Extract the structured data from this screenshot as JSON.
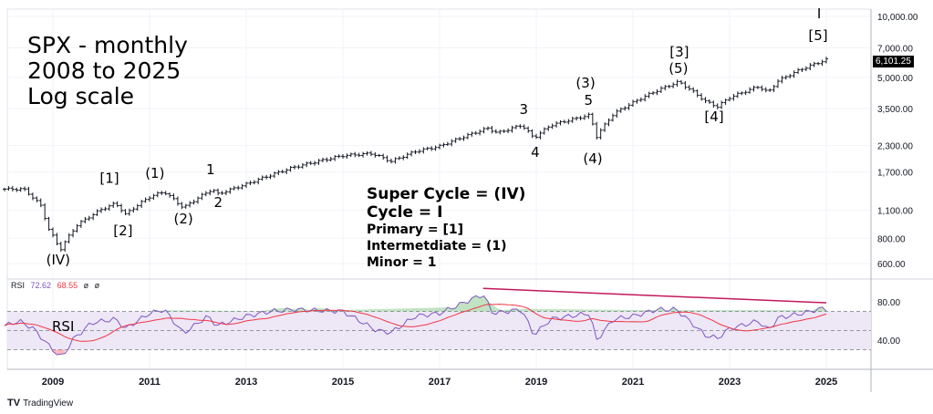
{
  "chart_data": {
    "type": "ohlc",
    "title_lines": [
      "SPX - monthly",
      "2008 to 2025",
      "Log scale"
    ],
    "yscale": "log",
    "ylim": [
      540,
      10500
    ],
    "y_ticks": [
      "10,000.00",
      "7,000.00",
      "5,000.00",
      "3,500.00",
      "2,300.00",
      "1,700.00",
      "1,100.00",
      "800.00",
      "600.00"
    ],
    "y_tick_values": [
      10000,
      7000,
      5000,
      3500,
      2300,
      1700,
      1100,
      800,
      600
    ],
    "x_ticks": [
      "2009",
      "2011",
      "2013",
      "2015",
      "2017",
      "2019",
      "2021",
      "2023",
      "2025"
    ],
    "x_tick_values": [
      2009,
      2011,
      2013,
      2015,
      2017,
      2019,
      2021,
      2023,
      2025
    ],
    "xlim": [
      2008.0,
      2026.3
    ],
    "last_price": "6,101.25",
    "price_keypoints": [
      [
        2008.0,
        1400
      ],
      [
        2008.4,
        1400
      ],
      [
        2008.75,
        1160
      ],
      [
        2008.9,
        900
      ],
      [
        2009.15,
        700
      ],
      [
        2009.5,
        930
      ],
      [
        2010.0,
        1110
      ],
      [
        2010.3,
        1190
      ],
      [
        2010.5,
        1050
      ],
      [
        2011.0,
        1280
      ],
      [
        2011.3,
        1360
      ],
      [
        2011.7,
        1130
      ],
      [
        2012.3,
        1400
      ],
      [
        2012.4,
        1320
      ],
      [
        2013.0,
        1480
      ],
      [
        2014.0,
        1800
      ],
      [
        2015.0,
        2050
      ],
      [
        2015.6,
        2100
      ],
      [
        2016.0,
        1920
      ],
      [
        2016.5,
        2150
      ],
      [
        2017.0,
        2280
      ],
      [
        2018.0,
        2800
      ],
      [
        2018.2,
        2650
      ],
      [
        2018.7,
        2900
      ],
      [
        2018.95,
        2500
      ],
      [
        2019.3,
        2900
      ],
      [
        2020.1,
        3250
      ],
      [
        2020.25,
        2550
      ],
      [
        2020.6,
        3300
      ],
      [
        2021.0,
        3750
      ],
      [
        2021.5,
        4300
      ],
      [
        2021.95,
        4750
      ],
      [
        2022.5,
        3800
      ],
      [
        2022.75,
        3580
      ],
      [
        2023.0,
        3970
      ],
      [
        2023.6,
        4500
      ],
      [
        2023.8,
        4200
      ],
      [
        2024.0,
        4800
      ],
      [
        2024.5,
        5500
      ],
      [
        2025.0,
        6100
      ]
    ],
    "wave_labels": [
      {
        "text": "(IV)",
        "x": 2009.11,
        "y": 594
      },
      {
        "text": "[1]",
        "x": 2010.17,
        "y": 1500
      },
      {
        "text": "[2]",
        "x": 2010.45,
        "y": 828
      },
      {
        "text": "(1)",
        "x": 2011.11,
        "y": 1592
      },
      {
        "text": "(2)",
        "x": 2011.7,
        "y": 948
      },
      {
        "text": "1",
        "x": 2012.26,
        "y": 1660
      },
      {
        "text": "2",
        "x": 2012.42,
        "y": 1143
      },
      {
        "text": "3",
        "x": 2018.74,
        "y": 3296
      },
      {
        "text": "4",
        "x": 2018.98,
        "y": 2023
      },
      {
        "text": "(3)",
        "x": 2020.02,
        "y": 4447
      },
      {
        "text": "5",
        "x": 2020.08,
        "y": 3655
      },
      {
        "text": "(4)",
        "x": 2020.17,
        "y": 1880
      },
      {
        "text": "[3]",
        "x": 2021.96,
        "y": 6337
      },
      {
        "text": "(5)",
        "x": 2021.94,
        "y": 5250
      },
      {
        "text": "[4]",
        "x": 2022.68,
        "y": 3033
      },
      {
        "text": "I",
        "x": 2024.85,
        "y": 9800
      },
      {
        "text": "[5]",
        "x": 2024.83,
        "y": 7640
      }
    ],
    "legend_lines": {
      "big": [
        "Super Cycle = (IV)",
        "Cycle = I"
      ],
      "small": [
        "Primary = [1]",
        "Intermetdiate = (1)",
        "Minor = 1"
      ]
    },
    "rsi": {
      "label": "RSI",
      "tag": "RSI",
      "value": "72.62",
      "ma_value": "68.55",
      "extra": [
        "ø",
        "ø"
      ],
      "ylim": [
        14,
        100
      ],
      "y_ticks": [
        "80.00",
        "40.00"
      ],
      "y_tick_values": [
        80,
        40
      ],
      "bands": [
        30,
        50,
        70
      ],
      "keypoints": [
        [
          2008.0,
          55
        ],
        [
          2008.3,
          60
        ],
        [
          2008.6,
          52
        ],
        [
          2008.9,
          35
        ],
        [
          2009.1,
          25
        ],
        [
          2009.2,
          22
        ],
        [
          2009.4,
          40
        ],
        [
          2009.8,
          58
        ],
        [
          2010.3,
          62
        ],
        [
          2010.5,
          52
        ],
        [
          2011.0,
          68
        ],
        [
          2011.3,
          72
        ],
        [
          2011.7,
          47
        ],
        [
          2012.2,
          65
        ],
        [
          2012.4,
          55
        ],
        [
          2013.0,
          65
        ],
        [
          2013.5,
          70
        ],
        [
          2014.0,
          72
        ],
        [
          2015.0,
          70
        ],
        [
          2015.7,
          50
        ],
        [
          2016.0,
          48
        ],
        [
          2016.5,
          65
        ],
        [
          2017.0,
          68
        ],
        [
          2017.9,
          88
        ],
        [
          2018.1,
          68
        ],
        [
          2018.7,
          72
        ],
        [
          2018.95,
          45
        ],
        [
          2019.3,
          62
        ],
        [
          2020.1,
          68
        ],
        [
          2020.25,
          40
        ],
        [
          2020.6,
          62
        ],
        [
          2021.0,
          65
        ],
        [
          2021.5,
          72
        ],
        [
          2021.9,
          72
        ],
        [
          2022.5,
          45
        ],
        [
          2022.75,
          42
        ],
        [
          2023.0,
          52
        ],
        [
          2023.6,
          60
        ],
        [
          2023.8,
          50
        ],
        [
          2024.0,
          63
        ],
        [
          2024.5,
          68
        ],
        [
          2024.9,
          73
        ],
        [
          2025.0,
          72.6
        ]
      ],
      "trendline": [
        [
          2017.9,
          94
        ],
        [
          2025.0,
          79
        ]
      ]
    },
    "colors": {
      "bars": "#131722",
      "rsi": "#7e57c2",
      "rsi_ma": "#f23645",
      "trend": "#c2185b",
      "band": "#ede7f6",
      "grid": "#f0f3fa"
    }
  },
  "footer": {
    "brand": "TradingView"
  }
}
